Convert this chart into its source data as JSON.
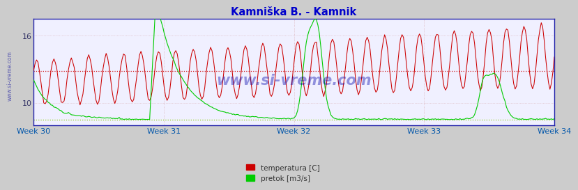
{
  "title": "Kamniška B. - Kamnik",
  "title_color": "#0000cc",
  "background_color": "#cccccc",
  "plot_bg_color": "#f0f0ff",
  "x_labels": [
    "Week 30",
    "Week 31",
    "Week 32",
    "Week 33",
    "Week 34"
  ],
  "x_label_color": "#0055aa",
  "temp_color": "#cc0000",
  "flow_color": "#00cc00",
  "temp_avg_color": "#cc0000",
  "flow_avg_color": "#88cc00",
  "watermark": "www.si-vreme.com",
  "watermark_color": "#0000aa",
  "legend_labels": [
    "temperatura [C]",
    "pretok [m3/s]"
  ],
  "legend_colors": [
    "#cc0000",
    "#00cc00"
  ],
  "n_points": 360,
  "ylim": [
    8.0,
    17.5
  ],
  "temp_avg": 12.8,
  "flow_avg": 8.5
}
